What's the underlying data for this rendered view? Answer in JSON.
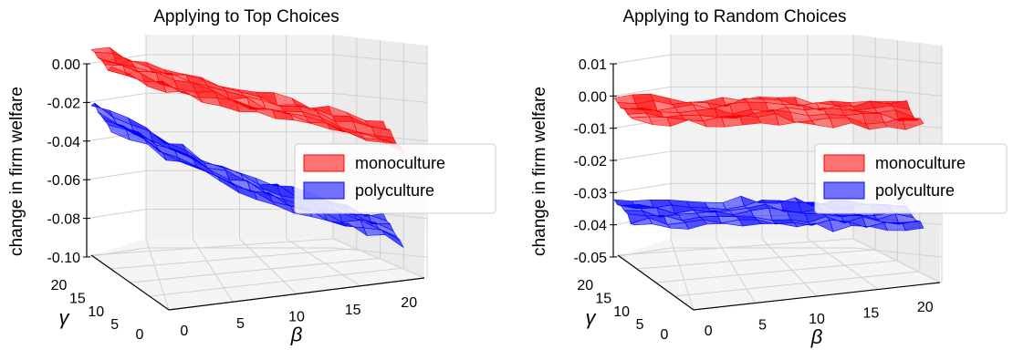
{
  "chart_data": [
    {
      "type": "surface",
      "title": "Applying to Top Choices",
      "zlabel": "change in firm welfare",
      "xlabel": "β",
      "ylabel": "γ",
      "x_ticks": [
        "0",
        "5",
        "10",
        "15",
        "20"
      ],
      "y_ticks": [
        "5",
        "10",
        "15",
        "20"
      ],
      "y_axis_extra_tick": "0",
      "z_ticks": [
        "0.00",
        "-0.02",
        "-0.04",
        "-0.06",
        "-0.08",
        "-0.10"
      ],
      "xlim": [
        0,
        20
      ],
      "ylim": [
        0,
        20
      ],
      "zlim": [
        -0.1,
        0.0
      ],
      "grid": true,
      "legend": {
        "placement": "right",
        "entries": [
          {
            "name": "monoculture",
            "color": "#ff0000"
          },
          {
            "name": "polyculture",
            "color": "#0000ff"
          }
        ]
      },
      "series": [
        {
          "name": "monoculture",
          "color": "#ff0000",
          "beta": [
            0,
            5,
            10,
            15,
            20
          ],
          "welfare": [
            0.003,
            -0.008,
            -0.017,
            -0.025,
            -0.034
          ]
        },
        {
          "name": "polyculture",
          "color": "#0000ff",
          "beta": [
            0,
            5,
            10,
            15,
            20
          ],
          "welfare": [
            -0.027,
            -0.045,
            -0.06,
            -0.072,
            -0.082
          ]
        }
      ]
    },
    {
      "type": "surface",
      "title": "Applying to Random Choices",
      "zlabel": "change in firm welfare",
      "xlabel": "β",
      "ylabel": "γ",
      "x_ticks": [
        "0",
        "5",
        "10",
        "15",
        "20"
      ],
      "y_ticks": [
        "5",
        "10",
        "15",
        "20"
      ],
      "y_axis_extra_tick": "0",
      "z_ticks": [
        "0.01",
        "0.00",
        "-0.01",
        "-0.02",
        "-0.03",
        "-0.04",
        "-0.05"
      ],
      "xlim": [
        0,
        20
      ],
      "ylim": [
        0,
        20
      ],
      "zlim": [
        -0.05,
        0.01
      ],
      "grid": true,
      "legend": {
        "placement": "right",
        "entries": [
          {
            "name": "monoculture",
            "color": "#ff0000"
          },
          {
            "name": "polyculture",
            "color": "#0000ff"
          }
        ]
      },
      "series": [
        {
          "name": "monoculture",
          "color": "#ff0000",
          "beta": [
            0,
            5,
            10,
            15,
            20
          ],
          "welfare": [
            -0.004,
            -0.005,
            -0.004,
            -0.005,
            -0.005
          ]
        },
        {
          "name": "polyculture",
          "color": "#0000ff",
          "beta": [
            0,
            5,
            10,
            15,
            20
          ],
          "welfare": [
            -0.036,
            -0.037,
            -0.036,
            -0.037,
            -0.037
          ]
        }
      ]
    }
  ]
}
